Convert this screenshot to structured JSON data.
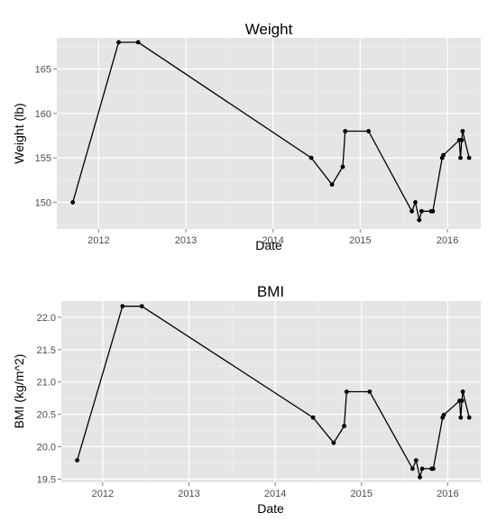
{
  "chart_data": [
    {
      "type": "line",
      "title": "Weight",
      "xlabel": "Date",
      "ylabel": "Weight (lb)",
      "xlim": [
        "2011-07-10",
        "2016-05-20"
      ],
      "ylim": [
        147,
        168.5
      ],
      "x_ticks": [
        "2012",
        "2013",
        "2014",
        "2015",
        "2016"
      ],
      "y_ticks": [
        150,
        155,
        160,
        165
      ],
      "grid": true,
      "series": [
        {
          "x": [
            "2011-09-15",
            "2012-03-25",
            "2012-06-15",
            "2014-06-10",
            "2014-09-05",
            "2014-10-20",
            "2014-10-30",
            "2015-02-05",
            "2015-08-05",
            "2015-08-20",
            "2015-09-05",
            "2015-09-15",
            "2015-10-25",
            "2015-11-01",
            "2015-12-10",
            "2015-12-15",
            "2016-02-20",
            "2016-02-25",
            "2016-03-01",
            "2016-03-05",
            "2016-04-01"
          ],
          "y": [
            150,
            168,
            168,
            155,
            152,
            154,
            158,
            158,
            149,
            150,
            148,
            149,
            149,
            149,
            155,
            155.3,
            157,
            155,
            157,
            158,
            155
          ]
        }
      ]
    },
    {
      "type": "line",
      "title": "BMI",
      "xlabel": "Date",
      "ylabel": "BMI (kg/m^2)",
      "xlim": [
        "2011-07-10",
        "2016-05-20"
      ],
      "ylim": [
        19.45,
        22.25
      ],
      "x_ticks": [
        "2012",
        "2013",
        "2014",
        "2015",
        "2016"
      ],
      "y_ticks": [
        "19.5",
        "20.0",
        "20.5",
        "21.0",
        "21.5",
        "22.0"
      ],
      "grid": true,
      "series": [
        {
          "x": [
            "2011-09-15",
            "2012-03-25",
            "2012-06-15",
            "2014-06-10",
            "2014-09-05",
            "2014-10-20",
            "2014-10-30",
            "2015-02-05",
            "2015-08-05",
            "2015-08-20",
            "2015-09-05",
            "2015-09-15",
            "2015-10-25",
            "2015-11-01",
            "2015-12-10",
            "2015-12-15",
            "2016-02-20",
            "2016-02-25",
            "2016-03-01",
            "2016-03-05",
            "2016-04-01"
          ],
          "y": [
            19.79,
            22.17,
            22.17,
            20.45,
            20.06,
            20.32,
            20.85,
            20.85,
            19.66,
            19.79,
            19.53,
            19.66,
            19.66,
            19.66,
            20.45,
            20.49,
            20.71,
            20.45,
            20.71,
            20.85,
            20.45
          ]
        }
      ]
    }
  ]
}
